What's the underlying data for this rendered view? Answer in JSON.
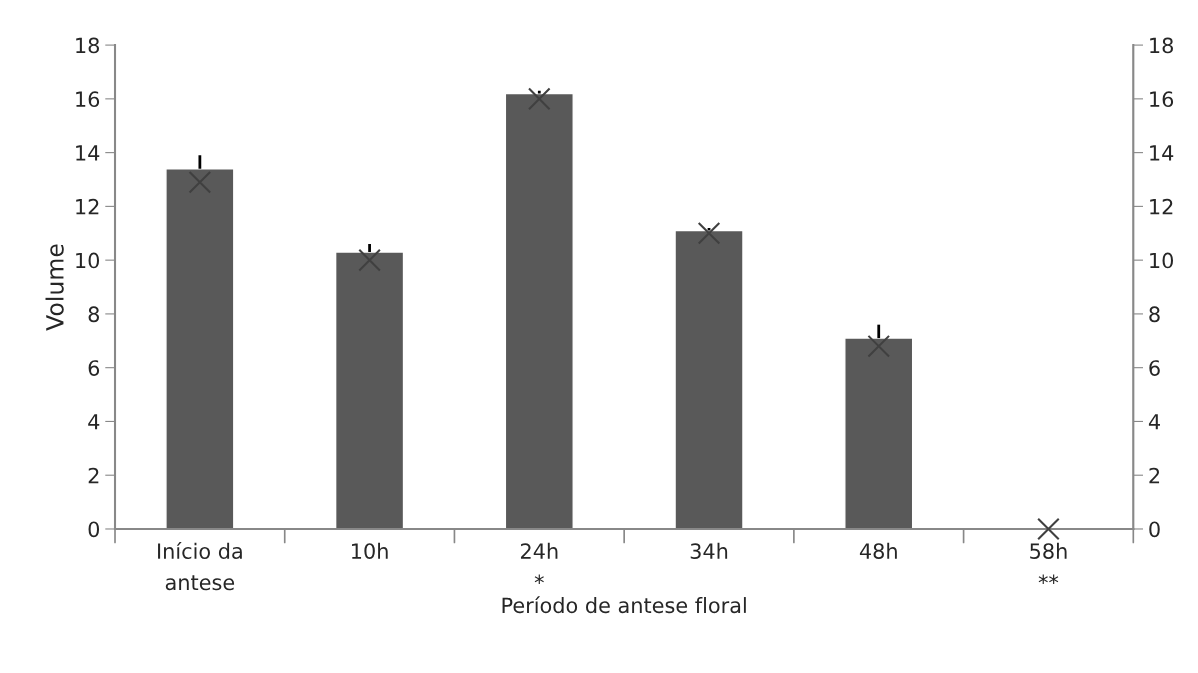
{
  "chart_data": {
    "type": "bar",
    "xlabel": "Período de antese floral",
    "ylabel": "Volume",
    "categories": [
      "Início da\nantese",
      "10h",
      "24h\n*",
      "34h",
      "48h",
      "58h\n**"
    ],
    "series": [
      {
        "color": "#595959",
        "values": [
          13.4,
          10.3,
          16.2,
          11.1,
          7.1,
          null
        ],
        "errors": [
          [
            13.4,
            13.9
          ],
          [
            10.3,
            10.6
          ],
          [
            16.2,
            16.3
          ],
          [
            11.1,
            11.2
          ],
          [
            7.1,
            7.6
          ],
          null
        ]
      },
      {
        "type": "scatter",
        "color": "#404040",
        "marker": "cross",
        "x": [
          "Início da\nantese",
          "10h",
          "24h\n*",
          "34h",
          "48h",
          "58h\n**"
        ],
        "values": [
          12.9,
          10.0,
          16.0,
          11.0,
          6.8,
          0
        ]
      }
    ],
    "ylim": [
      0,
      18
    ],
    "yticks": [
      0,
      2,
      4,
      6,
      8,
      10,
      12,
      14,
      16,
      18
    ],
    "y2lim": [
      0,
      18
    ],
    "y2ticks": [
      0,
      2,
      4,
      6,
      8,
      10,
      12,
      14,
      16,
      18
    ],
    "grid": false,
    "legend": false
  }
}
